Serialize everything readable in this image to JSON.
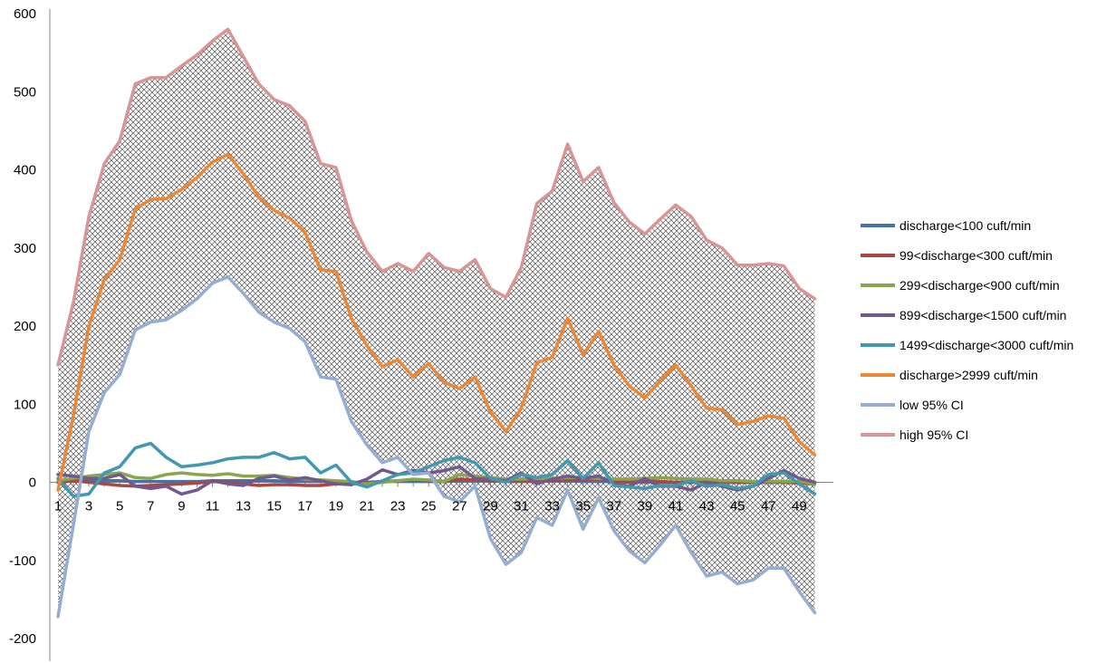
{
  "chart_data": {
    "type": "line",
    "x": [
      1,
      2,
      3,
      4,
      5,
      6,
      7,
      8,
      9,
      10,
      11,
      12,
      13,
      14,
      15,
      16,
      17,
      18,
      19,
      20,
      21,
      22,
      23,
      24,
      25,
      26,
      27,
      28,
      29,
      30,
      31,
      32,
      33,
      34,
      35,
      36,
      37,
      38,
      39,
      40,
      41,
      42,
      43,
      44,
      45,
      46,
      47,
      48,
      49,
      50
    ],
    "x_tick_labels": [
      "1",
      "3",
      "5",
      "7",
      "9",
      "11",
      "13",
      "15",
      "17",
      "19",
      "21",
      "23",
      "25",
      "27",
      "29",
      "31",
      "33",
      "35",
      "37",
      "39",
      "41",
      "43",
      "45",
      "47",
      "49"
    ],
    "ylim": [
      -200,
      600
    ],
    "y_ticks": [
      -200,
      -100,
      0,
      100,
      200,
      300,
      400,
      500,
      600
    ],
    "grid": false,
    "legend_position": "right",
    "band": {
      "between": [
        "low 95% CI",
        "high 95% CI"
      ],
      "fill": "crosshatch"
    },
    "series": [
      {
        "name": "discharge<100 cuft/min",
        "color": "#4572a7",
        "values": [
          0,
          2,
          2,
          2,
          2,
          1,
          1,
          1,
          1,
          1,
          2,
          2,
          2,
          2,
          2,
          1,
          1,
          1,
          1,
          0,
          0,
          1,
          1,
          1,
          1,
          1,
          2,
          2,
          2,
          1,
          1,
          1,
          2,
          2,
          1,
          1,
          1,
          0,
          0,
          0,
          0,
          0,
          0,
          0,
          0,
          0,
          0,
          0,
          0,
          0
        ]
      },
      {
        "name": "99<discharge<300 cuft/min",
        "color": "#aa4643",
        "values": [
          0,
          2,
          0,
          -2,
          -4,
          -5,
          -4,
          -3,
          -2,
          -1,
          1,
          0,
          -2,
          -4,
          -3,
          -3,
          -4,
          -4,
          -2,
          -2,
          -1,
          1,
          2,
          3,
          2,
          1,
          4,
          3,
          2,
          1,
          2,
          1,
          2,
          3,
          3,
          4,
          2,
          0,
          2,
          1,
          0,
          0,
          0,
          0,
          0,
          0,
          0,
          0,
          -1,
          -2
        ]
      },
      {
        "name": "299<discharge<900 cuft/min",
        "color": "#89a54e",
        "values": [
          2,
          5,
          8,
          10,
          12,
          6,
          5,
          10,
          12,
          10,
          9,
          11,
          8,
          8,
          9,
          6,
          4,
          3,
          2,
          1,
          -2,
          0,
          2,
          4,
          3,
          1,
          10,
          8,
          6,
          4,
          4,
          5,
          5,
          6,
          6,
          5,
          4,
          4,
          5,
          6,
          5,
          4,
          4,
          2,
          2,
          1,
          1,
          1,
          1,
          -2
        ]
      },
      {
        "name": "899<discharge<1500 cuft/min",
        "color": "#71588f",
        "values": [
          10,
          8,
          5,
          5,
          10,
          -5,
          -8,
          -5,
          -15,
          -10,
          2,
          -2,
          -4,
          5,
          8,
          3,
          6,
          2,
          -2,
          -3,
          4,
          16,
          10,
          15,
          12,
          15,
          20,
          5,
          4,
          2,
          12,
          -2,
          4,
          8,
          5,
          8,
          -2,
          -5,
          5,
          -5,
          -5,
          -10,
          0,
          -5,
          -10,
          -5,
          5,
          15,
          5,
          0
        ]
      },
      {
        "name": "1499<discharge<3000 cuft/min",
        "color": "#4198af",
        "values": [
          5,
          -18,
          -15,
          12,
          20,
          44,
          50,
          32,
          20,
          22,
          25,
          30,
          32,
          32,
          38,
          30,
          32,
          12,
          22,
          0,
          -6,
          2,
          10,
          12,
          20,
          28,
          32,
          25,
          5,
          0,
          10,
          6,
          10,
          28,
          5,
          25,
          -4,
          -6,
          -8,
          -4,
          -4,
          2,
          -5,
          -3,
          -8,
          -5,
          10,
          12,
          -2,
          -15
        ]
      },
      {
        "name": "discharge>2999 cuft/min",
        "color": "#ee8734",
        "values": [
          -10,
          85,
          200,
          260,
          285,
          350,
          362,
          363,
          375,
          390,
          410,
          420,
          395,
          365,
          348,
          338,
          320,
          272,
          270,
          210,
          175,
          148,
          157,
          135,
          152,
          128,
          120,
          135,
          90,
          65,
          95,
          153,
          160,
          210,
          163,
          193,
          150,
          123,
          108,
          130,
          150,
          123,
          95,
          93,
          74,
          78,
          85,
          82,
          52,
          35
        ]
      },
      {
        "name": "low 95% CI",
        "color": "#94aed1",
        "values": [
          -172,
          -55,
          65,
          115,
          138,
          195,
          205,
          208,
          220,
          235,
          255,
          263,
          242,
          218,
          205,
          197,
          180,
          135,
          132,
          78,
          48,
          25,
          32,
          10,
          12,
          -18,
          -25,
          -5,
          -72,
          -105,
          -90,
          -45,
          -55,
          -10,
          -60,
          -20,
          -62,
          -88,
          -103,
          -80,
          -55,
          -90,
          -120,
          -115,
          -130,
          -125,
          -110,
          -110,
          -140,
          -167
        ]
      },
      {
        "name": "high 95% CI",
        "color": "#d89595",
        "values": [
          150,
          230,
          340,
          408,
          437,
          510,
          518,
          518,
          533,
          547,
          565,
          580,
          545,
          510,
          490,
          482,
          462,
          408,
          403,
          335,
          295,
          270,
          280,
          270,
          293,
          275,
          270,
          285,
          248,
          237,
          275,
          357,
          373,
          433,
          385,
          403,
          358,
          333,
          318,
          337,
          355,
          340,
          310,
          300,
          278,
          278,
          280,
          277,
          248,
          235
        ]
      }
    ]
  }
}
